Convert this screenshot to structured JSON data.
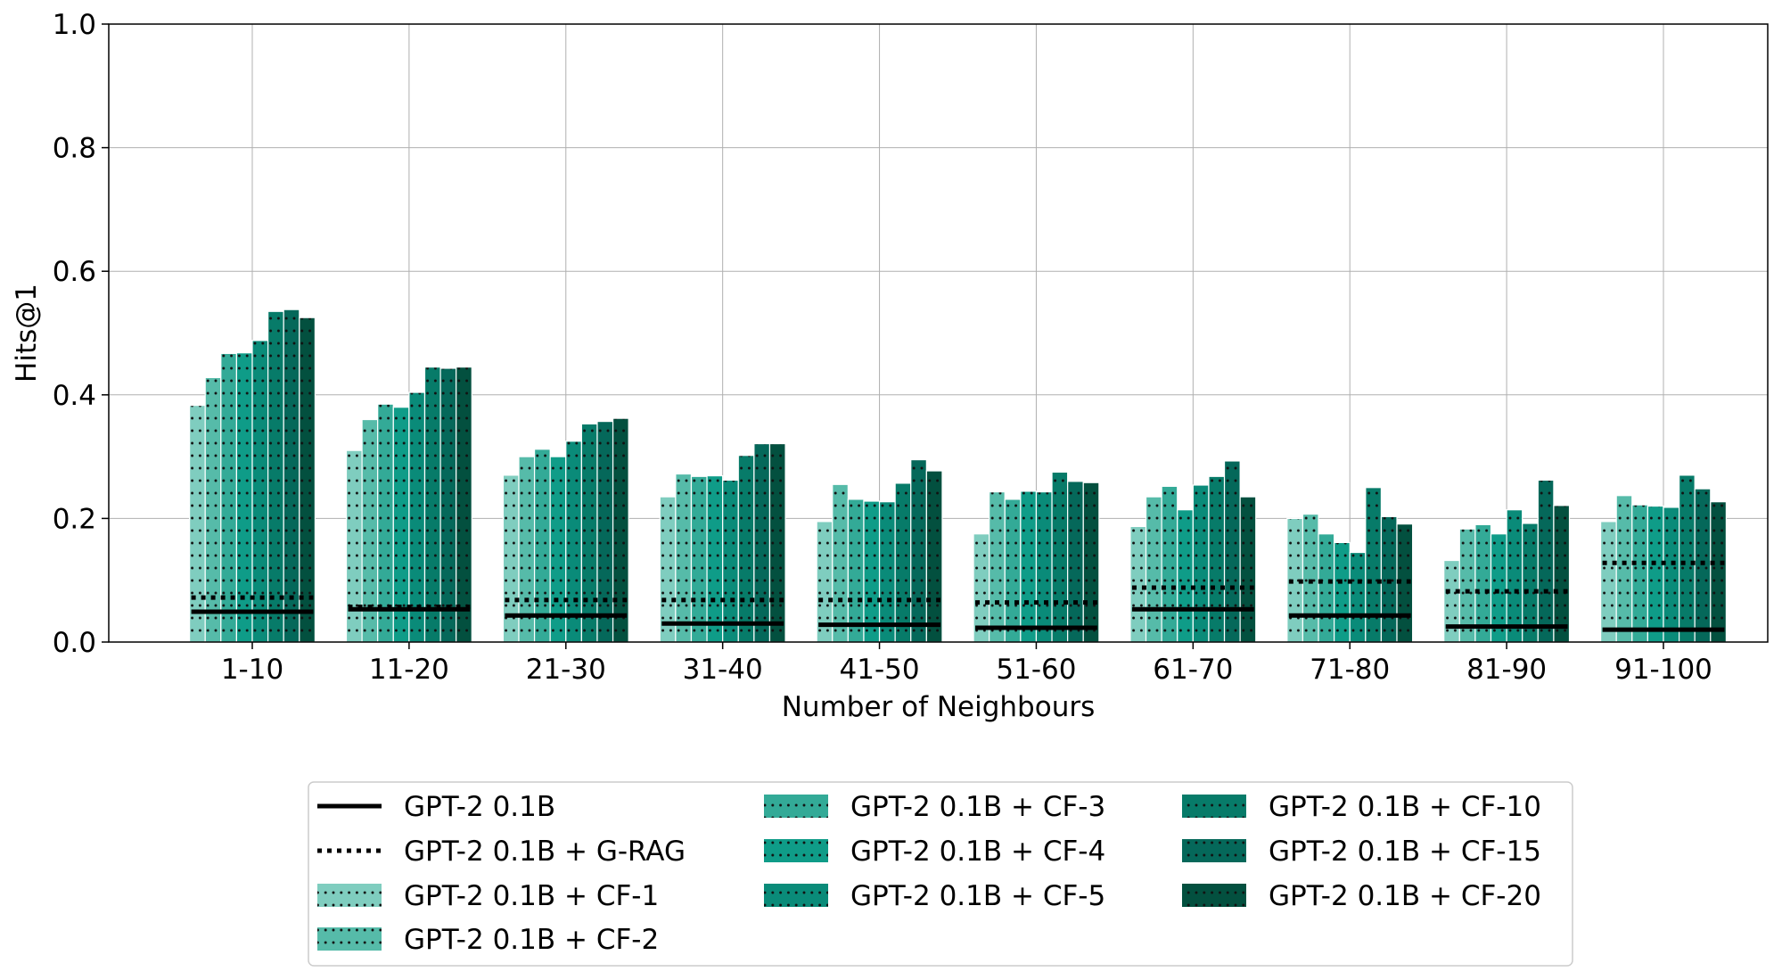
{
  "chart_data": {
    "type": "bar",
    "xlabel": "Number of Neighbours",
    "ylabel": "Hits@1",
    "ylim": [
      0,
      1.0
    ],
    "yticks": [
      "0.0",
      "0.2",
      "0.4",
      "0.6",
      "0.8",
      "1.0"
    ],
    "grid": true,
    "legend_position": "bottom-center",
    "categories": [
      "1-10",
      "11-20",
      "21-30",
      "31-40",
      "41-50",
      "51-60",
      "61-70",
      "71-80",
      "81-90",
      "91-100"
    ],
    "series": [
      {
        "name": "GPT-2 0.1B + CF-1",
        "color": "#7fcdbf",
        "values": [
          0.383,
          0.31,
          0.27,
          0.235,
          0.195,
          0.175,
          0.187,
          0.2,
          0.132,
          0.195
        ]
      },
      {
        "name": "GPT-2 0.1B + CF-2",
        "color": "#56bba9",
        "values": [
          0.428,
          0.36,
          0.3,
          0.272,
          0.255,
          0.243,
          0.235,
          0.207,
          0.183,
          0.237
        ]
      },
      {
        "name": "GPT-2 0.1B + CF-3",
        "color": "#33aa97",
        "values": [
          0.467,
          0.385,
          0.312,
          0.268,
          0.231,
          0.231,
          0.252,
          0.175,
          0.19,
          0.222
        ]
      },
      {
        "name": "GPT-2 0.1B + CF-4",
        "color": "#0f9c88",
        "values": [
          0.468,
          0.38,
          0.3,
          0.269,
          0.228,
          0.244,
          0.214,
          0.161,
          0.175,
          0.22
        ]
      },
      {
        "name": "GPT-2 0.1B + CF-5",
        "color": "#0a8b79",
        "values": [
          0.488,
          0.404,
          0.325,
          0.262,
          0.227,
          0.243,
          0.254,
          0.145,
          0.214,
          0.218
        ]
      },
      {
        "name": "GPT-2 0.1B + CF-10",
        "color": "#077b69",
        "values": [
          0.535,
          0.445,
          0.353,
          0.302,
          0.257,
          0.275,
          0.268,
          0.25,
          0.192,
          0.27
        ]
      },
      {
        "name": "GPT-2 0.1B + CF-15",
        "color": "#05685a",
        "values": [
          0.538,
          0.443,
          0.357,
          0.321,
          0.295,
          0.26,
          0.293,
          0.203,
          0.262,
          0.248
        ]
      },
      {
        "name": "GPT-2 0.1B + CF-20",
        "color": "#03503f",
        "values": [
          0.525,
          0.445,
          0.362,
          0.321,
          0.277,
          0.258,
          0.235,
          0.191,
          0.221,
          0.227
        ]
      }
    ],
    "lines": [
      {
        "name": "GPT-2 0.1B",
        "style": "solid",
        "color": "#000000",
        "values": [
          0.049,
          0.053,
          0.043,
          0.03,
          0.028,
          0.023,
          0.053,
          0.043,
          0.025,
          0.02
        ]
      },
      {
        "name": "GPT-2 0.1B + G-RAG",
        "style": "dotted",
        "color": "#000000",
        "values": [
          0.072,
          0.057,
          0.068,
          0.068,
          0.068,
          0.064,
          0.088,
          0.098,
          0.082,
          0.128
        ]
      }
    ],
    "legend": {
      "columns": [
        [
          "GPT-2 0.1B",
          "GPT-2 0.1B + G-RAG",
          "GPT-2 0.1B + CF-1",
          "GPT-2 0.1B + CF-2"
        ],
        [
          "GPT-2 0.1B + CF-3",
          "GPT-2 0.1B + CF-4",
          "GPT-2 0.1B + CF-5"
        ],
        [
          "GPT-2 0.1B + CF-10",
          "GPT-2 0.1B + CF-15",
          "GPT-2 0.1B + CF-20"
        ]
      ]
    }
  }
}
